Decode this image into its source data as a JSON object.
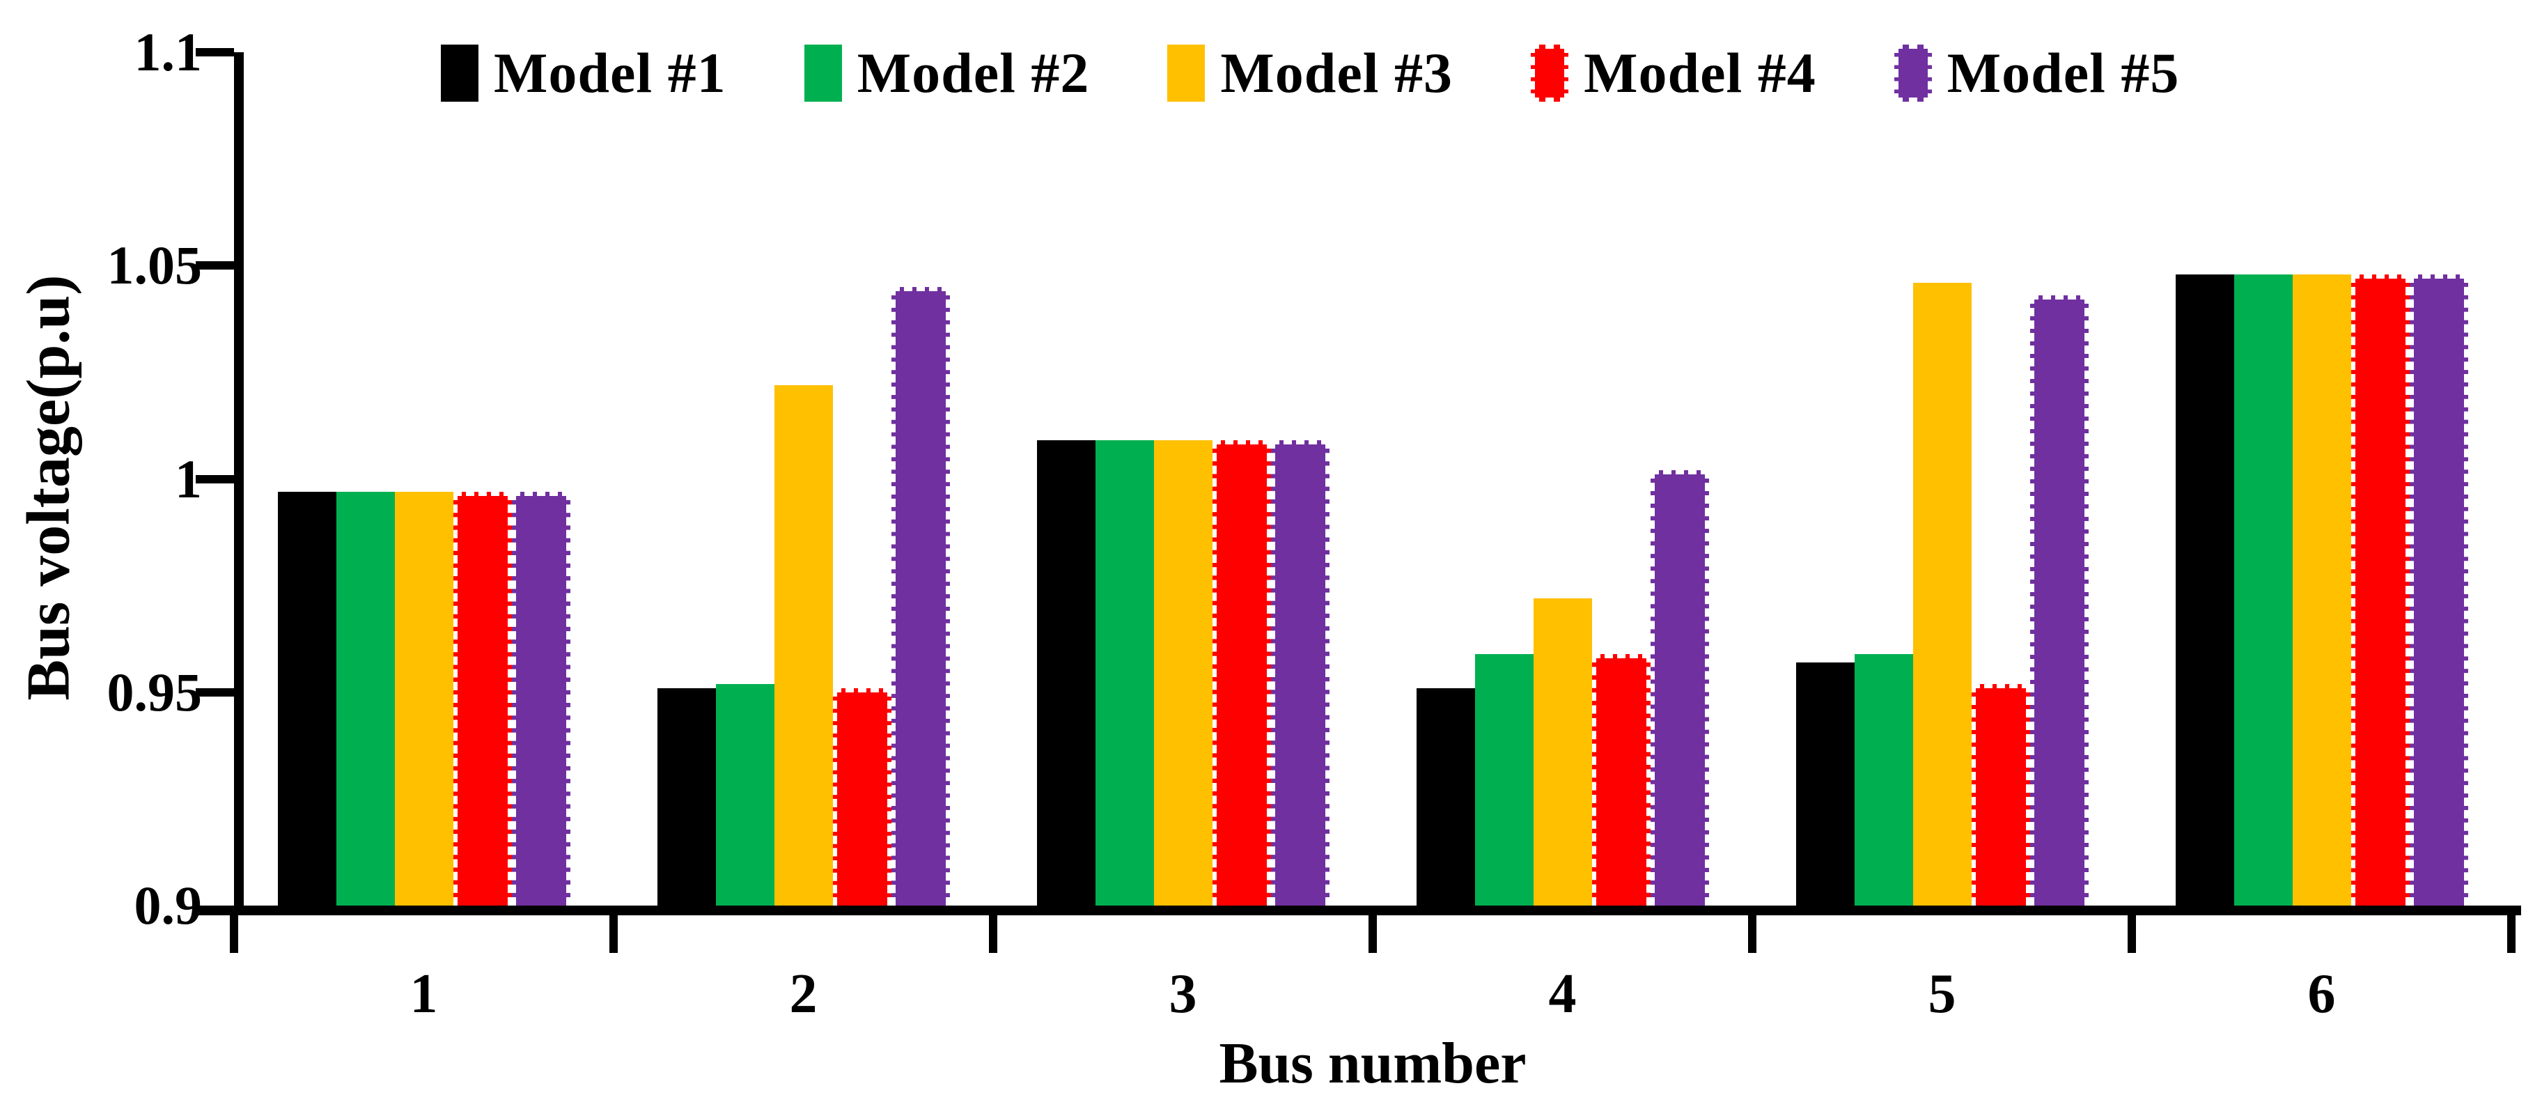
{
  "figure": {
    "background": "#ffffff"
  },
  "legend": {
    "position": "top",
    "items": [
      {
        "label": "Model #1",
        "color": "#000000",
        "dashed": false
      },
      {
        "label": "Model #2",
        "color": "#00B050",
        "dashed": false
      },
      {
        "label": "Model #3",
        "color": "#FFC000",
        "dashed": false
      },
      {
        "label": "Model #4",
        "color": "#FF0000",
        "dashed": true
      },
      {
        "label": "Model #5",
        "color": "#7030A0",
        "dashed": true
      }
    ]
  },
  "y_axis": {
    "title": "Bus voltage(p.u)",
    "tick_labels": [
      "1.1",
      "1.05",
      "1",
      "0.95",
      "0.9"
    ],
    "min": 0.9,
    "max": 1.1,
    "tick_step": 0.05
  },
  "x_axis": {
    "title": "Bus number",
    "tick_labels": [
      "1",
      "2",
      "3",
      "4",
      "5",
      "6"
    ]
  },
  "chart_data": {
    "type": "bar",
    "title": "",
    "categories": [
      "1",
      "2",
      "3",
      "4",
      "5",
      "6"
    ],
    "series": [
      {
        "name": "Model #1",
        "color": "#000000",
        "dashed": false,
        "values": [
          0.997,
          0.951,
          1.009,
          0.951,
          0.957,
          1.048
        ]
      },
      {
        "name": "Model #2",
        "color": "#00B050",
        "dashed": false,
        "values": [
          0.997,
          0.952,
          1.009,
          0.959,
          0.959,
          1.048
        ]
      },
      {
        "name": "Model #3",
        "color": "#FFC000",
        "dashed": false,
        "values": [
          0.997,
          1.022,
          1.009,
          0.972,
          1.046,
          1.048
        ]
      },
      {
        "name": "Model #4",
        "color": "#FF0000",
        "dashed": true,
        "values": [
          0.997,
          0.951,
          1.009,
          0.959,
          0.952,
          1.048
        ]
      },
      {
        "name": "Model #5",
        "color": "#7030A0",
        "dashed": true,
        "values": [
          0.997,
          1.045,
          1.009,
          1.002,
          1.043,
          1.048
        ]
      }
    ],
    "xlabel": "Bus number",
    "ylabel": "Bus voltage(p.u)",
    "ylim": [
      0.9,
      1.1
    ],
    "grid": false,
    "legend_position": "top"
  }
}
